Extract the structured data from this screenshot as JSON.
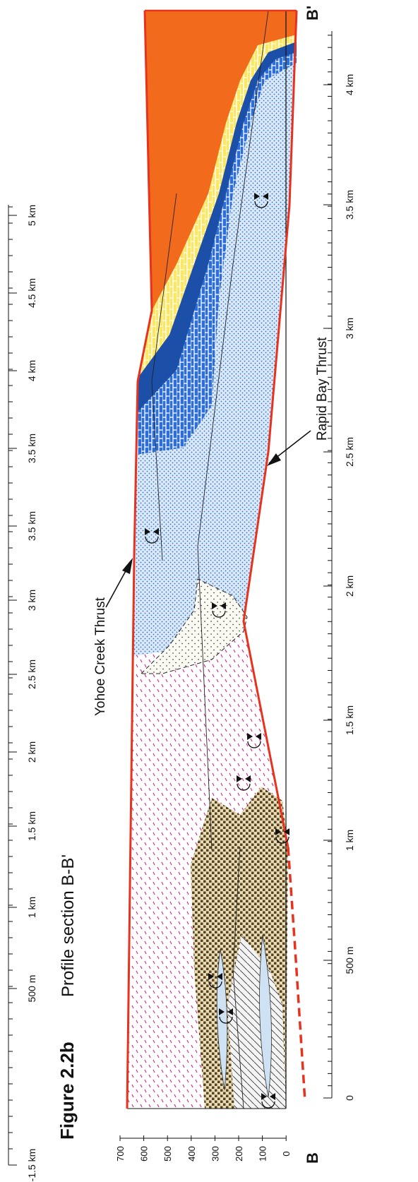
{
  "figure": {
    "number": "Figure 2.2b",
    "title": "Profile section B-B'"
  },
  "labels": {
    "start": "B",
    "end": "B'",
    "thrust_upper": "Yohoe Creek Thrust",
    "thrust_lower": "Rapid Bay Thrust"
  },
  "elevation_axis": {
    "ticks": [
      "700",
      "600",
      "500",
      "400",
      "300",
      "200",
      "100",
      "0"
    ]
  },
  "upper_scale": {
    "ticks": [
      "-1.5 km",
      "500 m",
      "1 km",
      "1.5 km",
      "2 km",
      "2.5 km",
      "3 km",
      "3.5 km",
      "3.5 km",
      "4 km",
      "4.5 km",
      "5 km"
    ]
  },
  "lower_scale": {
    "ticks": [
      "0",
      "500 m",
      "1 km",
      "1.5 km",
      "2 km",
      "2.5 km",
      "3 km",
      "3.5 km",
      "4 km"
    ]
  }
}
